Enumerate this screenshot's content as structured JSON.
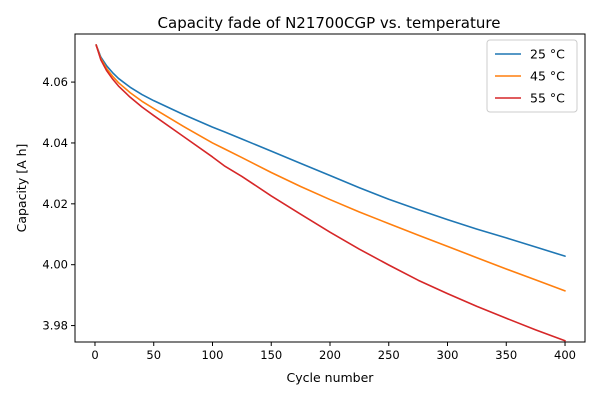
{
  "chart_data": {
    "type": "line",
    "title": "Capacity fade of N21700CGP vs. temperature",
    "xlabel": "Cycle number",
    "ylabel": "Capacity [A h]",
    "xlim": [
      -17,
      417
    ],
    "ylim": [
      3.9746,
      4.0758
    ],
    "xticks": [
      0,
      50,
      100,
      150,
      200,
      250,
      300,
      350,
      400
    ],
    "xtick_labels": [
      "0",
      "50",
      "100",
      "150",
      "200",
      "250",
      "300",
      "350",
      "400"
    ],
    "yticks": [
      3.98,
      4.0,
      4.02,
      4.04,
      4.06
    ],
    "ytick_labels": [
      "3.98",
      "4.00",
      "4.02",
      "4.04",
      "4.06"
    ],
    "grid": false,
    "legend_position": "top-right",
    "x": [
      1,
      5,
      10,
      15,
      20,
      30,
      40,
      50,
      75,
      100,
      110,
      125,
      150,
      175,
      200,
      225,
      250,
      275,
      300,
      325,
      350,
      375,
      400
    ],
    "series": [
      {
        "name": "25 °C",
        "color": "#1f77b4",
        "values": [
          4.0722,
          4.0682,
          4.0653,
          4.0631,
          4.0612,
          4.0583,
          4.0559,
          4.0539,
          4.0494,
          4.0452,
          4.0437,
          4.0413,
          4.0373,
          4.0333,
          4.0293,
          4.0253,
          4.0215,
          4.0181,
          4.0148,
          4.0117,
          4.0088,
          4.0058,
          4.0028
        ]
      },
      {
        "name": "45 °C",
        "color": "#ff7f0e",
        "values": [
          4.0722,
          4.0677,
          4.0644,
          4.0619,
          4.0598,
          4.0565,
          4.0537,
          4.0513,
          4.0455,
          4.04,
          4.0381,
          4.0352,
          4.0303,
          4.0257,
          4.0214,
          4.0173,
          4.0135,
          4.0097,
          4.006,
          4.0023,
          3.9986,
          3.995,
          3.9914
        ]
      },
      {
        "name": "55 °C",
        "color": "#d62728",
        "values": [
          4.0722,
          4.0673,
          4.0637,
          4.061,
          4.0587,
          4.055,
          4.0518,
          4.049,
          4.0422,
          4.0354,
          4.0325,
          4.029,
          4.0226,
          4.0166,
          4.0107,
          4.0051,
          3.9999,
          3.9949,
          3.9905,
          3.9863,
          3.9824,
          3.9786,
          3.975
        ]
      }
    ]
  }
}
